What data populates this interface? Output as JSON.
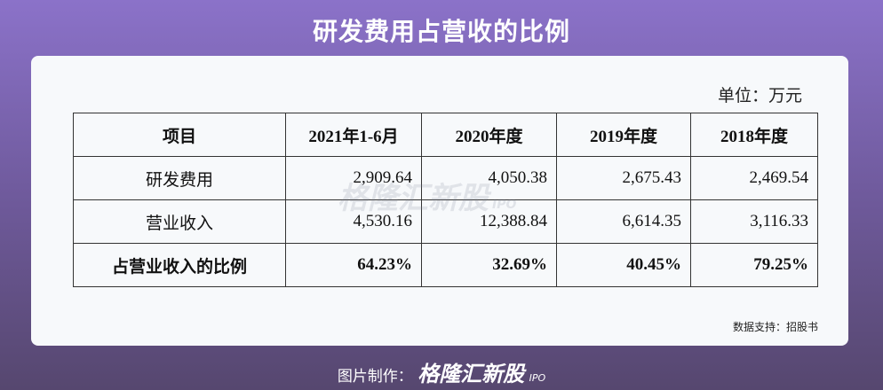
{
  "header": {
    "title": "研发费用占营收的比例"
  },
  "unit": "单位：万元",
  "table": {
    "columns": [
      "项目",
      "2021年1-6月",
      "2020年度",
      "2019年度",
      "2018年度"
    ],
    "rows": [
      [
        "研发费用",
        "2,909.64",
        "4,050.38",
        "2,675.43",
        "2,469.54"
      ],
      [
        "营业收入",
        "4,530.16",
        "12,388.84",
        "6,614.35",
        "3,116.33"
      ],
      [
        "占营业收入的比例",
        "64.23%",
        "32.69%",
        "40.45%",
        "79.25%"
      ]
    ]
  },
  "watermark": {
    "brand": "格隆汇新股",
    "tag": "IPO"
  },
  "source": "数据支持：招股书",
  "footer": {
    "label": "图片制作：",
    "brand": "格隆汇新股",
    "tag": "IPO"
  }
}
